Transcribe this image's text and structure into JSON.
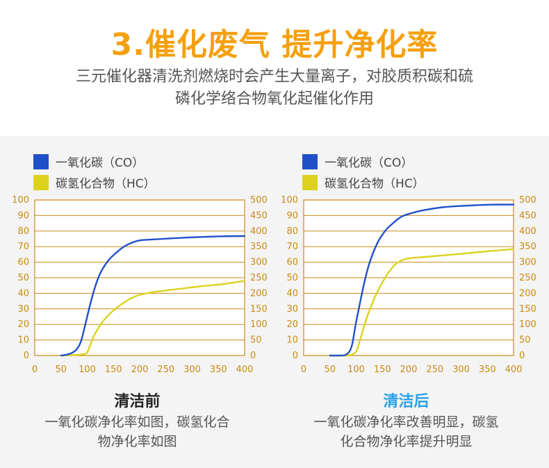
{
  "header": {
    "title": "3.催化废气 提升净化率",
    "subtitle_line1": "三元催化器清洗剂燃烧时会产生大量离子，对胶质积碳和硫",
    "subtitle_line2": "磷化学络合物氧化起催化作用"
  },
  "colors": {
    "accent": "#f5a00f",
    "co": "#2050c8",
    "hc": "#dcd21e",
    "axis": "#c98a14",
    "after_title": "#2aa0e8",
    "before_title": "#222222"
  },
  "chart_data": [
    {
      "type": "line",
      "caption_title": "清洁前",
      "caption_line1": "一氧化碳净化率如图，碳氢化合",
      "caption_line2": "物净化率如图",
      "legend": [
        "一氧化碳（CO）",
        "碳氢化合物（HC）"
      ],
      "xlim": [
        0,
        400
      ],
      "x_ticks": [
        0,
        50,
        100,
        150,
        200,
        250,
        300,
        350,
        400
      ],
      "y_left_lim": [
        0,
        100
      ],
      "y_left_ticks": [
        0,
        10,
        20,
        30,
        40,
        50,
        60,
        70,
        80,
        90,
        100
      ],
      "y_right_lim": [
        0,
        500
      ],
      "y_right_ticks": [
        0,
        50,
        100,
        150,
        200,
        250,
        300,
        350,
        400,
        450,
        500
      ],
      "grid": "horizontal",
      "series": [
        {
          "name": "一氧化碳（CO）",
          "axis": "left",
          "points": [
            [
              50,
              0
            ],
            [
              60,
              0.5
            ],
            [
              70,
              1.5
            ],
            [
              80,
              4
            ],
            [
              88,
              9
            ],
            [
              95,
              18
            ],
            [
              105,
              32
            ],
            [
              115,
              44
            ],
            [
              125,
              53
            ],
            [
              140,
              61
            ],
            [
              155,
              66
            ],
            [
              170,
              70
            ],
            [
              185,
              72.5
            ],
            [
              200,
              74
            ],
            [
              220,
              74.5
            ],
            [
              260,
              75.3
            ],
            [
              300,
              76
            ],
            [
              350,
              76.6
            ],
            [
              400,
              76.8
            ]
          ]
        },
        {
          "name": "碳氢化合物（HC）",
          "axis": "right",
          "points": [
            [
              50,
              0
            ],
            [
              80,
              2
            ],
            [
              95,
              5
            ],
            [
              100,
              10
            ],
            [
              105,
              30
            ],
            [
              115,
              70
            ],
            [
              130,
              110
            ],
            [
              150,
              145
            ],
            [
              170,
              170
            ],
            [
              185,
              185
            ],
            [
              200,
              195
            ],
            [
              230,
              205
            ],
            [
              270,
              213
            ],
            [
              320,
              223
            ],
            [
              360,
              230
            ],
            [
              400,
              240
            ]
          ]
        }
      ]
    },
    {
      "type": "line",
      "caption_title": "清洁后",
      "caption_line1": "一氧化碳净化率改善明显，碳氢",
      "caption_line2": "化合物净化率提升明显",
      "legend": [
        "一氧化碳（CO）",
        "碳氢化合物（HC）"
      ],
      "xlim": [
        0,
        400
      ],
      "x_ticks": [
        0,
        50,
        100,
        150,
        200,
        250,
        300,
        350,
        400
      ],
      "y_left_lim": [
        0,
        100
      ],
      "y_left_ticks": [
        0,
        10,
        20,
        30,
        40,
        50,
        60,
        70,
        80,
        90,
        100
      ],
      "y_right_lim": [
        0,
        500
      ],
      "y_right_ticks": [
        0,
        50,
        100,
        150,
        200,
        250,
        300,
        350,
        400,
        450,
        500
      ],
      "grid": "horizontal",
      "series": [
        {
          "name": "一氧化碳（CO）",
          "axis": "left",
          "points": [
            [
              50,
              0
            ],
            [
              70,
              0
            ],
            [
              80,
              0.5
            ],
            [
              88,
              3
            ],
            [
              93,
              8
            ],
            [
              98,
              18
            ],
            [
              105,
              30
            ],
            [
              115,
              46
            ],
            [
              125,
              59
            ],
            [
              140,
              72
            ],
            [
              155,
              80
            ],
            [
              170,
              85
            ],
            [
              185,
              89
            ],
            [
              200,
              91
            ],
            [
              230,
              93.5
            ],
            [
              270,
              95.5
            ],
            [
              320,
              96.5
            ],
            [
              360,
              97
            ],
            [
              400,
              97
            ]
          ]
        },
        {
          "name": "碳氢化合物（HC）",
          "axis": "right",
          "points": [
            [
              50,
              0
            ],
            [
              80,
              0
            ],
            [
              90,
              2
            ],
            [
              97,
              8
            ],
            [
              102,
              20
            ],
            [
              110,
              65
            ],
            [
              120,
              120
            ],
            [
              135,
              185
            ],
            [
              150,
              235
            ],
            [
              165,
              275
            ],
            [
              180,
              300
            ],
            [
              200,
              312
            ],
            [
              240,
              318
            ],
            [
              300,
              327
            ],
            [
              350,
              335
            ],
            [
              400,
              342
            ]
          ]
        }
      ]
    }
  ]
}
